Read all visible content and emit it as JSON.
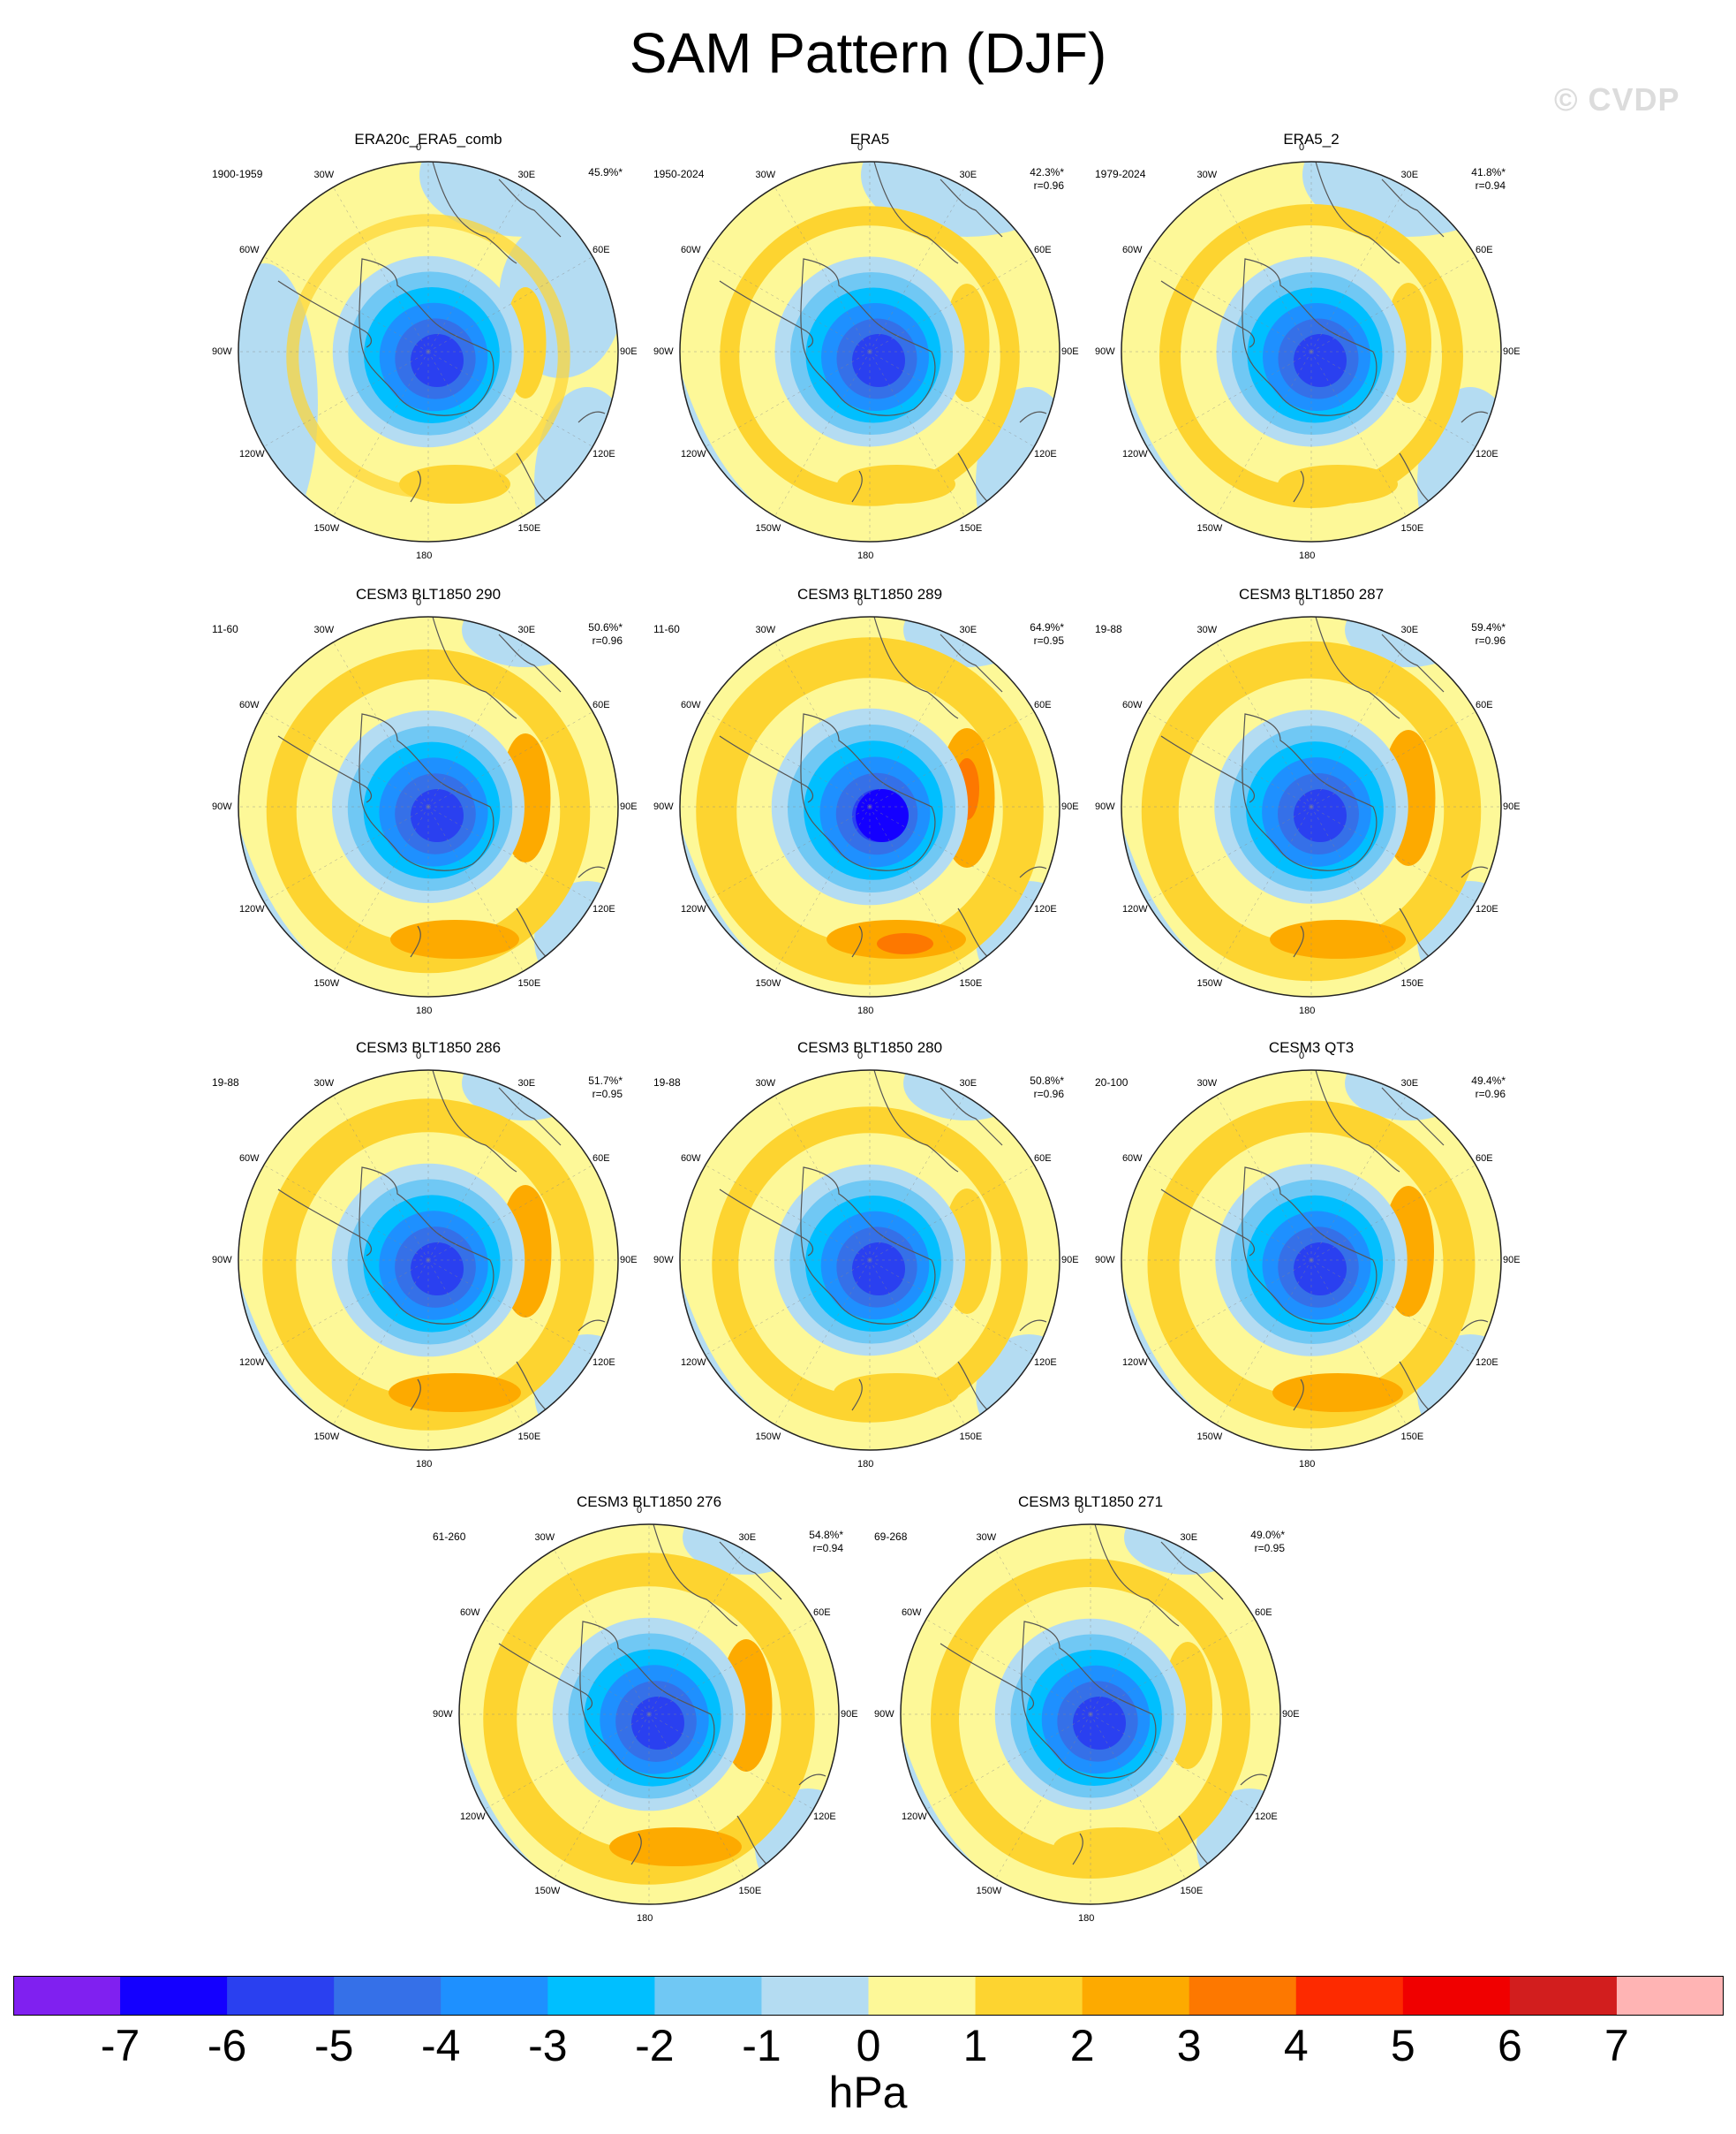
{
  "title": "SAM Pattern (DJF)",
  "watermark": "© CVDP",
  "lon_labels": [
    "0",
    "30E",
    "60E",
    "90E",
    "120E",
    "150E",
    "180",
    "150W",
    "120W",
    "90W",
    "60W",
    "30W"
  ],
  "panels": [
    {
      "title": "ERA20c_ERA5_comb",
      "period": "1900-1959",
      "pct": "45.9%*",
      "r": "",
      "strength": 0.55,
      "pos": 0.15
    },
    {
      "title": "ERA5",
      "period": "1950-2024",
      "pct": "42.3%*",
      "r": "r=0.96",
      "strength": 0.5,
      "pos": 0.35
    },
    {
      "title": "ERA5_2",
      "period": "1979-2024",
      "pct": "41.8%*",
      "r": "r=0.94",
      "strength": 0.5,
      "pos": 0.4
    },
    {
      "title": "CESM3 BLT1850 290",
      "period": "11-60",
      "pct": "50.6%*",
      "r": "r=0.96",
      "strength": 0.6,
      "pos": 0.65
    },
    {
      "title": "CESM3 BLT1850 289",
      "period": "11-60",
      "pct": "64.9%*",
      "r": "r=0.95",
      "strength": 0.75,
      "pos": 0.95
    },
    {
      "title": "CESM3 BLT1850 287",
      "period": "19-88",
      "pct": "59.4%*",
      "r": "r=0.96",
      "strength": 0.65,
      "pos": 0.85
    },
    {
      "title": "CESM3 BLT1850 286",
      "period": "19-88",
      "pct": "51.7%*",
      "r": "r=0.95",
      "strength": 0.62,
      "pos": 0.75
    },
    {
      "title": "CESM3 BLT1850 280",
      "period": "19-88",
      "pct": "50.8%*",
      "r": "r=0.96",
      "strength": 0.55,
      "pos": 0.55
    },
    {
      "title": "CESM3 QT3",
      "period": "20-100",
      "pct": "49.4%*",
      "r": "r=0.96",
      "strength": 0.58,
      "pos": 0.7
    },
    {
      "title": "CESM3 BLT1850 276",
      "period": "61-260",
      "pct": "54.8%*",
      "r": "r=0.94",
      "strength": 0.62,
      "pos": 0.75
    },
    {
      "title": "CESM3 BLT1850 271",
      "period": "69-268",
      "pct": "49.0%*",
      "r": "r=0.95",
      "strength": 0.55,
      "pos": 0.6
    }
  ],
  "chart_data": {
    "type": "heatmap",
    "title": "SAM Pattern (DJF)",
    "projection": "south polar stereographic",
    "colorbar": {
      "unit": "hPa",
      "ticks": [
        "-7",
        "-6",
        "-5",
        "-4",
        "-3",
        "-2",
        "-1",
        "0",
        "1",
        "2",
        "3",
        "4",
        "5",
        "6",
        "7"
      ],
      "colors": [
        "#8020f0",
        "#1400ff",
        "#2a40f0",
        "#3570e8",
        "#1e90ff",
        "#00bfff",
        "#70c8f4",
        "#b4dcf2",
        "#fdf898",
        "#fdd430",
        "#fdaa00",
        "#fd7800",
        "#fd2a00",
        "#f00000",
        "#d21e1e",
        "#ffb4b4"
      ]
    }
  }
}
